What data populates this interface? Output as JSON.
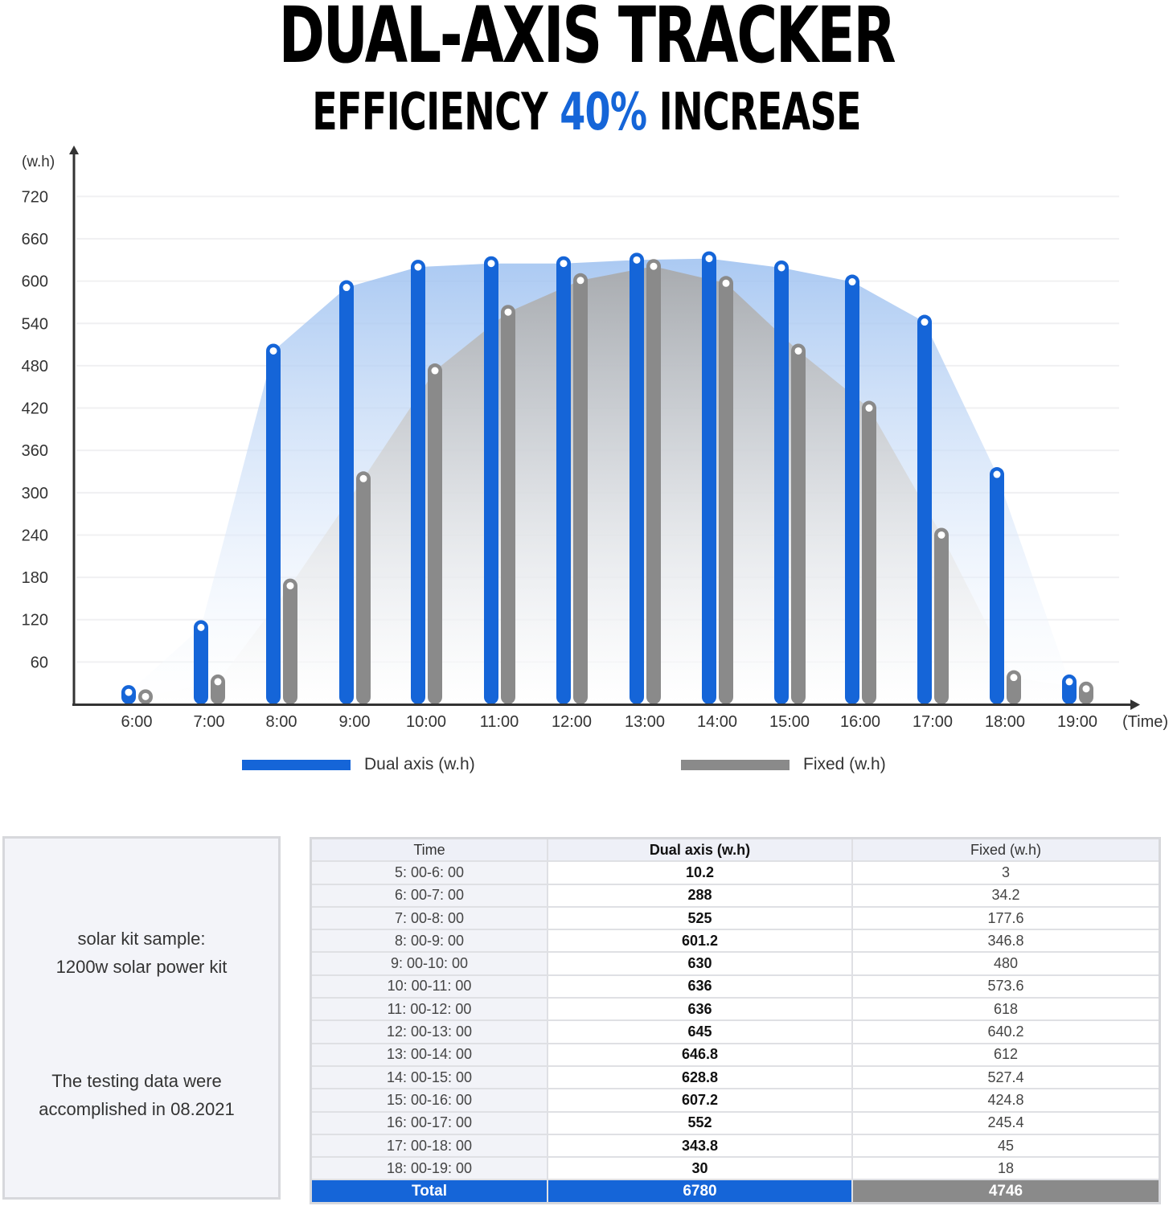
{
  "header": {
    "title": "DUAL-AXIS TRACKER",
    "subtitle_pre": "EFFICIENCY ",
    "subtitle_accent": "40%",
    "subtitle_post": " INCREASE"
  },
  "colors": {
    "dual": "#1565d8",
    "fixed": "#8a8a8a",
    "accent": "#1565d8",
    "axis": "#333333"
  },
  "chart_data": {
    "type": "bar",
    "title": "DUAL-AXIS TRACKER — EFFICIENCY 40% INCREASE",
    "xlabel": "(Time)",
    "ylabel": "(w.h)",
    "ylim": [
      0,
      720
    ],
    "yticks": [
      60,
      120,
      180,
      240,
      300,
      360,
      420,
      480,
      540,
      600,
      660,
      720
    ],
    "grid": true,
    "legend_position": "bottom",
    "categories": [
      "6:00",
      "7:00",
      "8:00",
      "9:00",
      "10:00",
      "11:00",
      "12:00",
      "13:00",
      "14:00",
      "15:00",
      "16:00",
      "17:00",
      "18:00",
      "19:00"
    ],
    "series": [
      {
        "name": "Dual axis (w.h)",
        "color": "#1565d8",
        "values": [
          17,
          109,
          501,
          591,
          620,
          625,
          625,
          630,
          632,
          619,
          599,
          542,
          326,
          32
        ]
      },
      {
        "name": "Fixed (w.h)",
        "color": "#8a8a8a",
        "values": [
          11,
          32,
          168,
          320,
          473,
          556,
          601,
          621,
          597,
          501,
          420,
          240,
          38,
          22
        ]
      }
    ]
  },
  "legend": {
    "dual_label": "Dual axis (w.h)",
    "fixed_label": "Fixed (w.h)"
  },
  "notes": {
    "line1": "solar kit sample:",
    "line2": "1200w solar power kit",
    "line3": "The testing data were",
    "line4": "accomplished in 08.2021"
  },
  "table": {
    "headers": {
      "time": "Time",
      "dual": "Dual axis (w.h)",
      "fixed": "Fixed (w.h)"
    },
    "rows": [
      {
        "time": "5: 00-6: 00",
        "dual": "10.2",
        "fixed": "3"
      },
      {
        "time": "6: 00-7: 00",
        "dual": "288",
        "fixed": "34.2"
      },
      {
        "time": "7: 00-8: 00",
        "dual": "525",
        "fixed": "177.6"
      },
      {
        "time": "8: 00-9: 00",
        "dual": "601.2",
        "fixed": "346.8"
      },
      {
        "time": "9: 00-10: 00",
        "dual": "630",
        "fixed": "480"
      },
      {
        "time": "10: 00-11: 00",
        "dual": "636",
        "fixed": "573.6"
      },
      {
        "time": "11: 00-12: 00",
        "dual": "636",
        "fixed": "618"
      },
      {
        "time": "12: 00-13: 00",
        "dual": "645",
        "fixed": "640.2"
      },
      {
        "time": "13: 00-14: 00",
        "dual": "646.8",
        "fixed": "612"
      },
      {
        "time": "14: 00-15: 00",
        "dual": "628.8",
        "fixed": "527.4"
      },
      {
        "time": "15: 00-16: 00",
        "dual": "607.2",
        "fixed": "424.8"
      },
      {
        "time": "16: 00-17: 00",
        "dual": "552",
        "fixed": "245.4"
      },
      {
        "time": "17: 00-18: 00",
        "dual": "343.8",
        "fixed": "45"
      },
      {
        "time": "18: 00-19: 00",
        "dual": "30",
        "fixed": "18"
      }
    ],
    "total": {
      "label": "Total",
      "dual": "6780",
      "fixed": "4746"
    }
  }
}
